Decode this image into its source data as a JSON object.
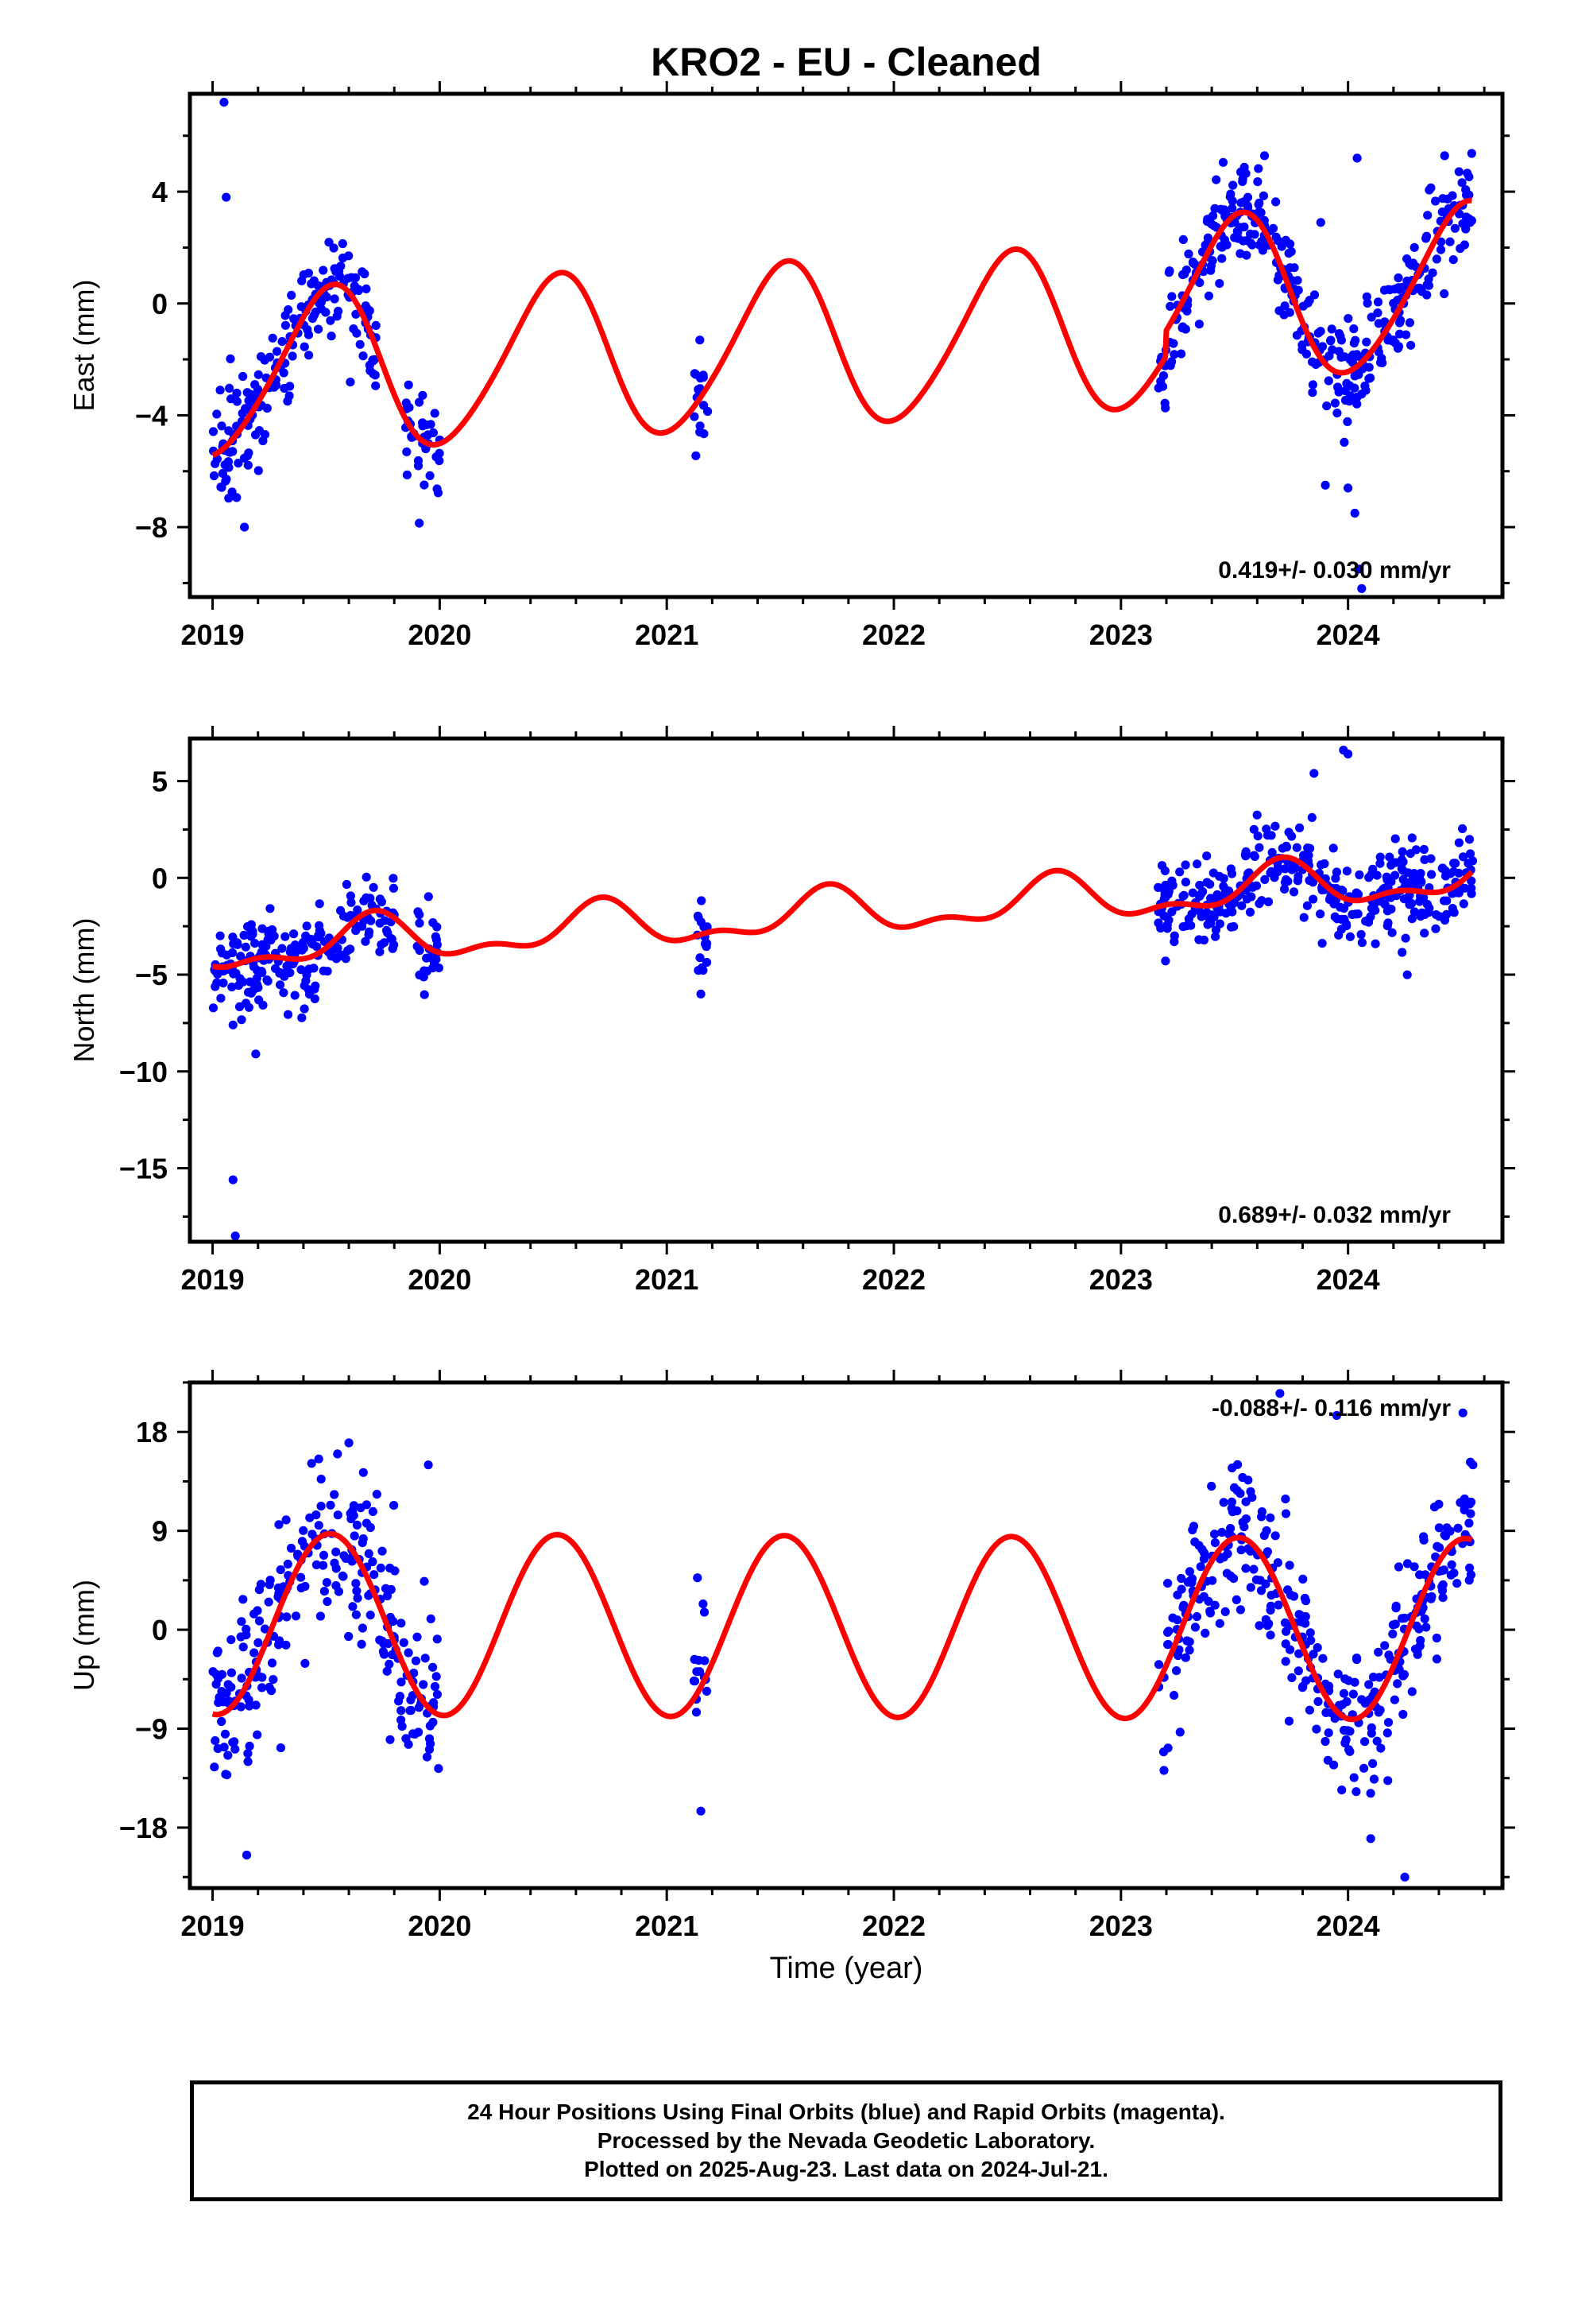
{
  "page": {
    "title": "KRO2  - EU - Cleaned",
    "xlabel": "Time (year)",
    "footer_lines": [
      "24 Hour Positions Using Final Orbits (blue) and Rapid Orbits (magenta).",
      "Processed by the Nevada Geodetic Laboratory.",
      "Plotted on 2025-Aug-23. Last data on 2024-Jul-21."
    ]
  },
  "chart_data": [
    {
      "type": "scatter",
      "ylabel": "East (mm)",
      "xlim": [
        2018.9,
        2024.68
      ],
      "ylim": [
        -10.5,
        7.5
      ],
      "x_ticks": [
        2019,
        2020,
        2021,
        2022,
        2023,
        2024
      ],
      "x_tick_labels": [
        "2019",
        "2020",
        "2021",
        "2022",
        "2023",
        "2024"
      ],
      "y_ticks": [
        -8,
        -4,
        0,
        4
      ],
      "y_tick_labels": [
        "-8",
        "-4",
        "0",
        "4"
      ],
      "rate_label": "0.419+/- 0.030 mm/yr",
      "colors": {
        "points": "#0000ff",
        "fit": "#ff0000"
      },
      "data_segments": [
        [
          2019.0,
          2019.72
        ],
        [
          2019.85,
          2020.0
        ],
        [
          2021.12,
          2021.18
        ],
        [
          2023.16,
          2024.55
        ]
      ],
      "fit": {
        "offset": -1.5,
        "rate": 0.419,
        "sin_amp": -0.2,
        "cos_amp": -2.9,
        "sin2_amp": 0.3,
        "cos2_amp": 0.1,
        "jumps": [
          [
            2023.2,
            0.9
          ]
        ]
      },
      "outliers": [
        [
          2019.05,
          7.2
        ],
        [
          2019.06,
          3.8
        ],
        [
          2019.14,
          -8.0
        ],
        [
          2023.9,
          -6.5
        ],
        [
          2024.0,
          -6.6
        ],
        [
          2024.03,
          -7.5
        ],
        [
          2024.05,
          -9.5
        ],
        [
          2024.06,
          -10.2
        ],
        [
          2024.04,
          5.2
        ],
        [
          2023.88,
          2.9
        ]
      ],
      "scatter_sd": 0.9,
      "n_points": 620
    },
    {
      "type": "scatter",
      "ylabel": "North (mm)",
      "xlim": [
        2018.9,
        2024.68
      ],
      "ylim": [
        -18.8,
        7.2
      ],
      "x_ticks": [
        2019,
        2020,
        2021,
        2022,
        2023,
        2024
      ],
      "x_tick_labels": [
        "2019",
        "2020",
        "2021",
        "2022",
        "2023",
        "2024"
      ],
      "y_ticks": [
        -15,
        -10,
        -5,
        0,
        5
      ],
      "y_tick_labels": [
        "-15",
        "-10",
        "-5",
        "0",
        "5"
      ],
      "rate_label": "0.689+/- 0.032 mm/yr",
      "colors": {
        "points": "#0000ff",
        "fit": "#ff0000"
      },
      "data_segments": [
        [
          2019.0,
          2019.8
        ],
        [
          2019.9,
          2020.0
        ],
        [
          2021.12,
          2021.18
        ],
        [
          2023.16,
          2024.55
        ]
      ],
      "fit": {
        "offset": -1.9,
        "rate": 0.689,
        "sin_amp": -1.0,
        "cos_amp": -0.3,
        "sin2_amp": 0.2,
        "cos2_amp": -0.5,
        "jumps": []
      },
      "outliers": [
        [
          2019.09,
          -15.6
        ],
        [
          2019.1,
          -18.5
        ],
        [
          2019.19,
          -9.1
        ],
        [
          2019.09,
          -7.6
        ],
        [
          2021.15,
          -6.0
        ],
        [
          2023.98,
          6.6
        ],
        [
          2024.0,
          6.4
        ],
        [
          2023.85,
          5.4
        ]
      ],
      "scatter_sd": 1.1,
      "n_points": 620
    },
    {
      "type": "scatter",
      "ylabel": "Up (mm)",
      "xlim": [
        2018.9,
        2024.68
      ],
      "ylim": [
        -23.5,
        22.5
      ],
      "x_ticks": [
        2019,
        2020,
        2021,
        2022,
        2023,
        2024
      ],
      "x_tick_labels": [
        "2019",
        "2020",
        "2021",
        "2022",
        "2023",
        "2024"
      ],
      "y_ticks": [
        -18,
        -9,
        0,
        9,
        18
      ],
      "y_tick_labels": [
        "-18",
        "-9",
        "0",
        "9",
        "18"
      ],
      "rate_label": "-0.088+/- 0.116 mm/yr",
      "colors": {
        "points": "#0000ff",
        "fit": "#ff0000"
      },
      "data_segments": [
        [
          2019.0,
          2019.92
        ],
        [
          2019.92,
          2020.0
        ],
        [
          2021.12,
          2021.18
        ],
        [
          2023.16,
          2024.55
        ]
      ],
      "fit": {
        "offset": 0.3,
        "rate": -0.088,
        "sin_amp": -0.9,
        "cos_amp": -8.2,
        "sin2_amp": 0.0,
        "cos2_amp": 0.0,
        "jumps": []
      },
      "outliers": [
        [
          2019.15,
          -20.5
        ],
        [
          2019.55,
          16.0
        ],
        [
          2019.6,
          17.0
        ],
        [
          2019.95,
          15.0
        ],
        [
          2023.7,
          21.5
        ],
        [
          2023.95,
          19.5
        ],
        [
          2024.1,
          -19.0
        ],
        [
          2024.25,
          -22.5
        ],
        [
          2024.55,
          15.0
        ],
        [
          2021.15,
          -16.5
        ]
      ],
      "scatter_sd": 3.6,
      "n_points": 620
    }
  ]
}
